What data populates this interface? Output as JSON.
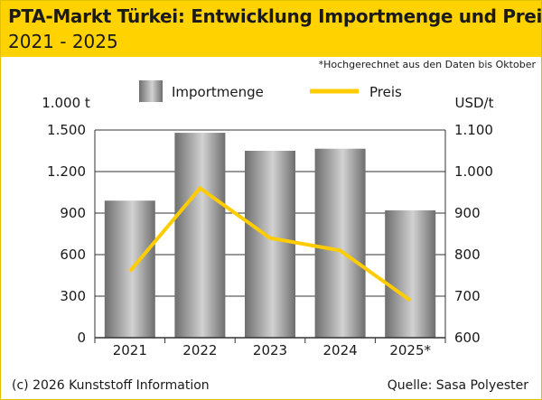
{
  "header": {
    "title": "PTA-Markt Türkei: Entwicklung Importmenge und Preis",
    "subtitle": "2021 - 2025"
  },
  "note": "*Hochgerechnet aus den Daten bis Oktober",
  "footer": {
    "copyright": "(c) 2026 Kunststoff Information",
    "source": "Quelle: Sasa Polyester"
  },
  "colors": {
    "header_bg": "#ffd200",
    "line": "#ffcc00",
    "bar_dark": "#6e6e6e",
    "bar_light": "#d2d2d2"
  },
  "chart_data": {
    "type": "bar+line",
    "categories": [
      "2021",
      "2022",
      "2023",
      "2024",
      "2025*"
    ],
    "series": [
      {
        "name": "Importmenge",
        "type": "bar",
        "axis": "left",
        "values": [
          990,
          1480,
          1350,
          1365,
          920
        ]
      },
      {
        "name": "Preis",
        "type": "line",
        "axis": "right",
        "values": [
          760,
          960,
          840,
          810,
          690
        ]
      }
    ],
    "left_axis": {
      "label": "1.000 t",
      "min": 0,
      "max": 1500,
      "ticks": [
        0,
        300,
        600,
        900,
        1200,
        1500
      ],
      "tick_labels": [
        "0",
        "300",
        "600",
        "900",
        "1.200",
        "1.500"
      ]
    },
    "right_axis": {
      "label": "USD/t",
      "min": 600,
      "max": 1100,
      "ticks": [
        600,
        700,
        800,
        900,
        1000,
        1100
      ],
      "tick_labels": [
        "600",
        "700",
        "800",
        "900",
        "1.000",
        "1.100"
      ]
    },
    "legend": [
      {
        "name": "Importmenge",
        "kind": "bar"
      },
      {
        "name": "Preis",
        "kind": "line"
      }
    ],
    "legend_position": "top",
    "grid": true
  }
}
